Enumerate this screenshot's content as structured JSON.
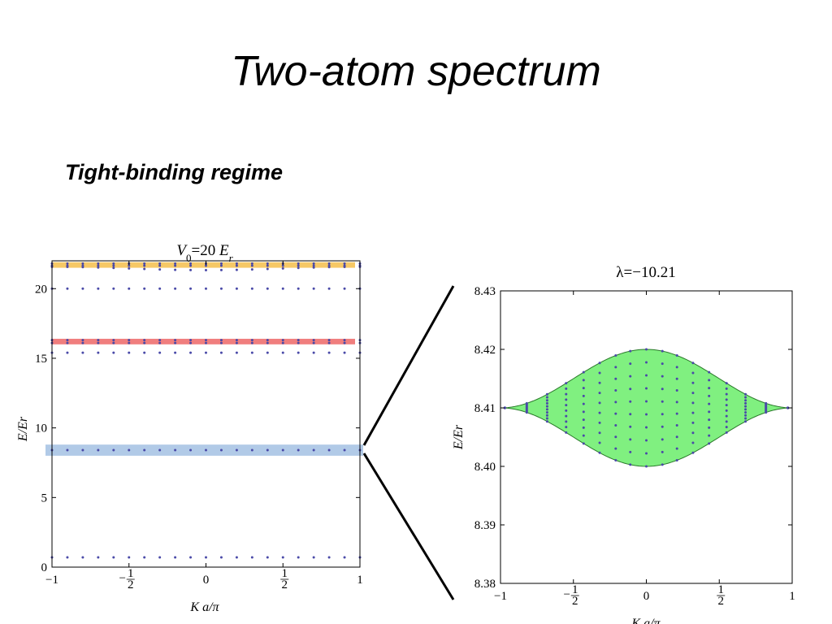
{
  "slide": {
    "title": "Two-atom spectrum",
    "subtitle": "Tight-binding regime"
  },
  "chart_data": [
    {
      "type": "scatter",
      "title": "V0=20 Er",
      "title_parts": {
        "v": "V",
        "sub": "0",
        "mid": "=20 ",
        "e": "E",
        "esub": "r"
      },
      "xlabel": "K a/π",
      "ylabel": "E/Er",
      "xlim": [
        -1,
        1
      ],
      "ylim": [
        0,
        22
      ],
      "xticks": [
        -1,
        -0.5,
        0,
        0.5,
        1
      ],
      "xtick_labels": [
        "−1",
        "−1/2",
        "0",
        "1/2",
        "1"
      ],
      "yticks": [
        0,
        5,
        10,
        15,
        20
      ],
      "ytick_labels": [
        "0",
        "5",
        "10",
        "15",
        "20"
      ],
      "grid": false,
      "point_color": "#4a4aa8",
      "n_points": 21,
      "highlight_bands": [
        {
          "y_min": 21.5,
          "y_max": 21.9,
          "color": "#f5c255"
        },
        {
          "y_min": 16.0,
          "y_max": 16.4,
          "color": "#ee7070"
        },
        {
          "y_min": 8.0,
          "y_max": 8.8,
          "color": "#a9c4e4"
        }
      ],
      "series": [
        {
          "kind": "flat",
          "y": 0.7
        },
        {
          "kind": "flat",
          "y": 8.4
        },
        {
          "kind": "flat",
          "y": 15.4
        },
        {
          "kind": "flat",
          "y": 16.1
        },
        {
          "kind": "flat",
          "y": 16.3
        },
        {
          "kind": "flat",
          "y": 20.0
        },
        {
          "kind": "dispersive",
          "y_center": 21.45,
          "amplitude": 0.12
        },
        {
          "kind": "flat",
          "y": 21.65
        },
        {
          "kind": "flat",
          "y": 21.8
        }
      ]
    },
    {
      "type": "scatter",
      "title": "λ=−10.21",
      "xlabel": "K a/π",
      "ylabel": "E/Er",
      "xlim": [
        -1,
        1
      ],
      "ylim": [
        8.38,
        8.43
      ],
      "xticks": [
        -1,
        -0.5,
        0,
        0.5,
        1
      ],
      "xtick_labels": [
        "−1",
        "−1/2",
        "0",
        "1/2",
        "1"
      ],
      "yticks": [
        8.38,
        8.39,
        8.4,
        8.41,
        8.42,
        8.43
      ],
      "ytick_labels": [
        "8.38",
        "8.39",
        "8.40",
        "8.41",
        "8.42",
        "8.43"
      ],
      "grid": false,
      "band": {
        "center": 8.41,
        "half_width_at_center": 0.01,
        "fill_color": "#80f080",
        "edge_color": "#2a7a2a"
      },
      "point_color": "#4a4aa8",
      "levels_per_column": 10,
      "columns_k": [
        -0.97,
        -0.82,
        -0.68,
        -0.55,
        -0.43,
        -0.32,
        -0.21,
        -0.11,
        0.0,
        0.11,
        0.21,
        0.32,
        0.43,
        0.55,
        0.68,
        0.82,
        0.97
      ]
    }
  ]
}
